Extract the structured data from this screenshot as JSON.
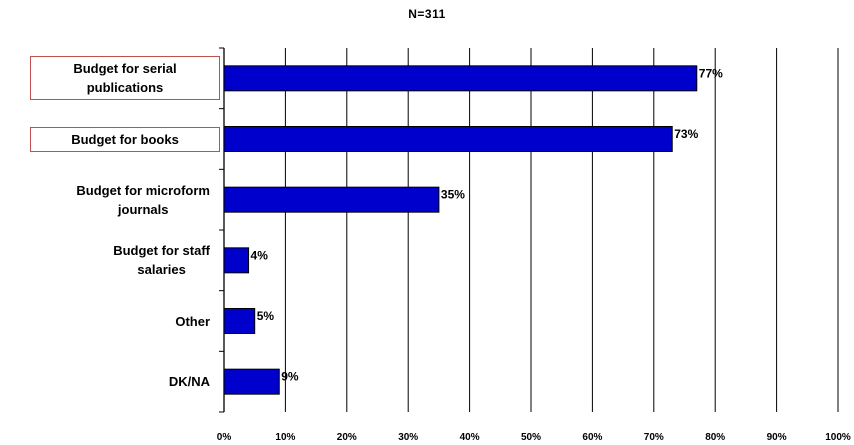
{
  "chart_data": {
    "type": "bar",
    "orientation": "horizontal",
    "title": "N=311",
    "categories": [
      [
        "Budget for serial",
        "publications"
      ],
      [
        "Budget for books"
      ],
      [
        "Budget for microform",
        "journals"
      ],
      [
        "Budget for staff",
        "salaries"
      ],
      [
        "Other"
      ],
      [
        "DK/NA"
      ]
    ],
    "highlighted_categories": [
      0,
      1
    ],
    "values": [
      77,
      73,
      35,
      4,
      5,
      9
    ],
    "data_labels": [
      "77%",
      "73%",
      "35%",
      "4%",
      "5%",
      "9%"
    ],
    "xlim": [
      0,
      100
    ],
    "xticks": [
      "0%",
      "10%",
      "20%",
      "30%",
      "40%",
      "50%",
      "60%",
      "70%",
      "80%",
      "90%",
      "100%"
    ],
    "grid": true,
    "bar_color": "#0000cc",
    "highlight_border_color": "#c0504d"
  }
}
